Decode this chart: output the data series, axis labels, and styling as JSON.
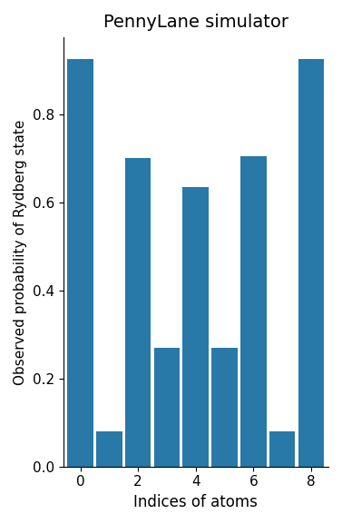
{
  "title": "PennyLane simulator",
  "xlabel": "Indices of atoms",
  "ylabel": "Observed probability of Rydberg state",
  "x_positions": [
    0,
    1,
    2,
    3,
    4,
    5,
    6,
    7,
    8
  ],
  "values": [
    0.925,
    0.08,
    0.7,
    0.27,
    0.635,
    0.27,
    0.705,
    0.08,
    0.925
  ],
  "bar_color": "#2878a8",
  "bar_width": 0.9,
  "ylim": [
    0.0,
    0.975
  ],
  "yticks": [
    0.0,
    0.2,
    0.4,
    0.6,
    0.8
  ],
  "xtick_labels": [
    "0",
    "2",
    "4",
    "6",
    "8"
  ],
  "xtick_positions": [
    0,
    2,
    4,
    6,
    8
  ],
  "xlim": [
    -0.6,
    8.6
  ],
  "figsize": [
    3.77,
    5.77
  ],
  "dpi": 100,
  "title_fontsize": 14,
  "xlabel_fontsize": 12,
  "ylabel_fontsize": 11,
  "tick_fontsize": 11
}
